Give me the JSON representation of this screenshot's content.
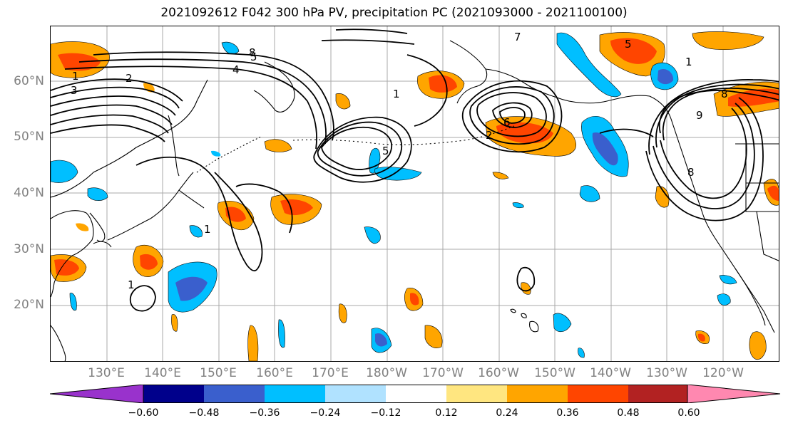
{
  "title": "2021092612 F042 300 hPa PV, precipitation PC (2021093000 - 2021100100)",
  "lat_labels": [
    "60°N",
    "50°N",
    "40°N",
    "30°N",
    "20°N"
  ],
  "lon_labels": [
    "130°E",
    "140°E",
    "150°E",
    "160°E",
    "170°E",
    "180°W",
    "170°W",
    "160°W",
    "150°W",
    "140°W",
    "130°W",
    "120°W"
  ],
  "colorbar": {
    "ticks": [
      "−0.60",
      "−0.48",
      "−0.36",
      "−0.24",
      "−0.12",
      "0.12",
      "0.24",
      "0.36",
      "0.48",
      "0.60"
    ],
    "colors": [
      "#9932cc",
      "#00008b",
      "#3a5fcd",
      "#00bfff",
      "#b0e2ff",
      "#ffffff",
      "#ffe680",
      "#ffa500",
      "#ff4500",
      "#b22222",
      "#ff88b0"
    ]
  },
  "contour_labels": [
    "1",
    "2",
    "3",
    "4",
    "5",
    "6",
    "7",
    "8",
    "9"
  ]
}
